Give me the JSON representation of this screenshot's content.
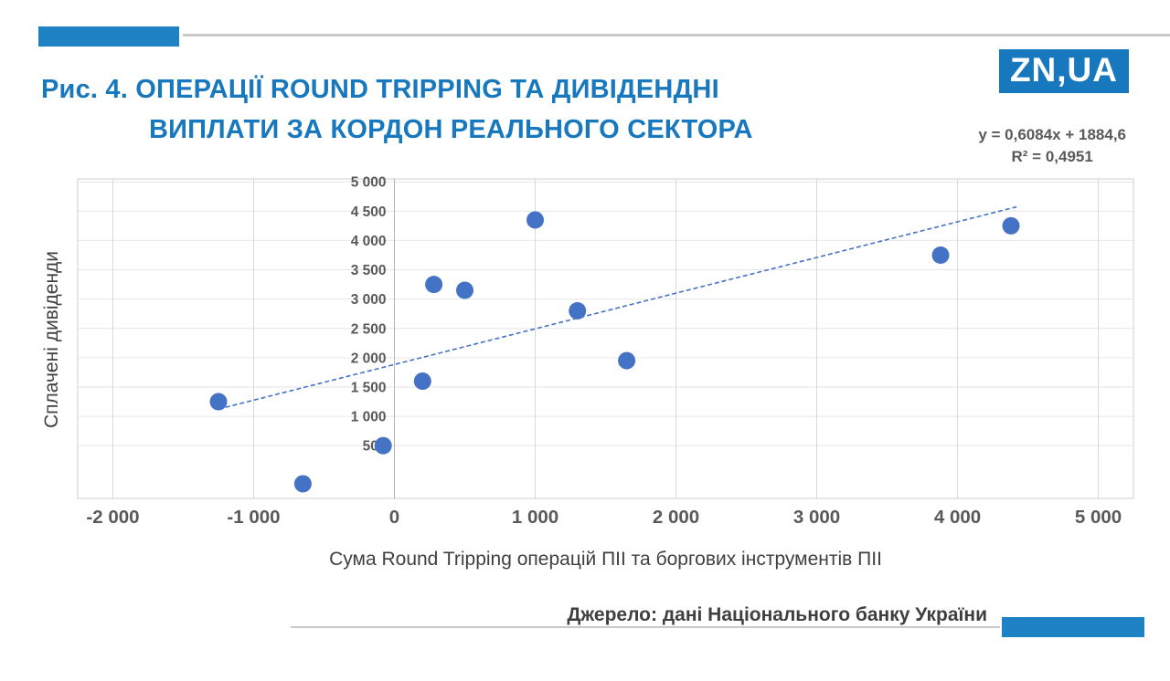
{
  "header": {
    "title_line1": "Рис. 4. ОПЕРАЦІЇ ROUND TRIPPING ТА ДИВІДЕНДНІ",
    "title_line2": "ВИПЛАТИ ЗА КОРДОН РЕАЛЬНОГО СЕКТОРА",
    "logo": "ZN,UA"
  },
  "footer": {
    "source": "Джерело: дані Національного банку України"
  },
  "colors": {
    "accent_blue": "#1e82c4",
    "title_blue": "#1878be",
    "point_blue": "#4472c4",
    "text_gray": "#595959"
  },
  "chart_data": {
    "type": "scatter",
    "title": "Операції Round Tripping та дивідендні виплати за кордон реального сектора",
    "xlabel": "Сума Round Tripping операцій ПІІ та боргових інструментів ПІІ",
    "ylabel": "Сплачені дивіденди",
    "xlim": [
      -2250,
      5250
    ],
    "ylim": [
      -400,
      5050
    ],
    "grid": true,
    "legend": "none",
    "x_ticks": [
      -2000,
      -1000,
      0,
      1000,
      2000,
      3000,
      4000,
      5000
    ],
    "x_tick_labels": [
      "-2 000",
      "-1 000",
      "0",
      "1 000",
      "2 000",
      "3 000",
      "4 000",
      "5 000"
    ],
    "y_ticks": [
      500,
      1000,
      1500,
      2000,
      2500,
      3000,
      3500,
      4000,
      4500,
      5000
    ],
    "y_tick_labels": [
      "500",
      "1 000",
      "1 500",
      "2 000",
      "2 500",
      "3 000",
      "3 500",
      "4 000",
      "4 500",
      "5 000"
    ],
    "points": [
      [
        -1250,
        1250
      ],
      [
        -650,
        -150
      ],
      [
        -80,
        500
      ],
      [
        200,
        1600
      ],
      [
        280,
        3250
      ],
      [
        500,
        3150
      ],
      [
        1000,
        4350
      ],
      [
        1300,
        2800
      ],
      [
        1650,
        1950
      ],
      [
        3880,
        3750
      ],
      [
        4380,
        4250
      ]
    ],
    "point_color": "#4472c4",
    "trendline": {
      "slope": 0.6084,
      "intercept": 1884.6,
      "x_start": -1250,
      "x_end": 4420,
      "style": "dashed",
      "label": "y = 0,6084x + 1884,6",
      "r2": "R² = 0,4951"
    }
  }
}
